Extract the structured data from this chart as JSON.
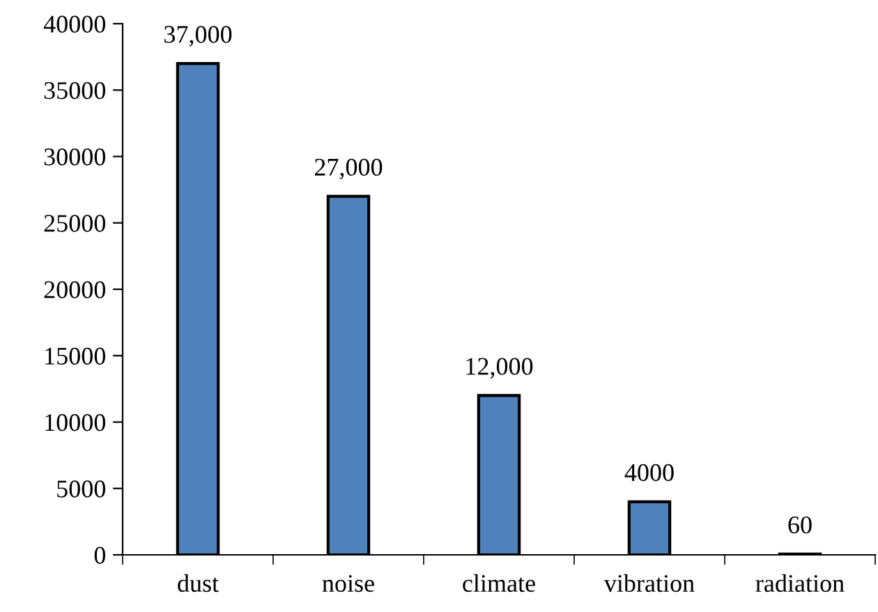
{
  "chart_data": {
    "type": "bar",
    "categories": [
      "dust",
      "noise",
      "climate",
      "vibration",
      "radiation"
    ],
    "values": [
      37000,
      27000,
      12000,
      4000,
      60
    ],
    "value_labels": [
      "37,000",
      "27,000",
      "12,000",
      "4000",
      "60"
    ],
    "color": "#4f81bd",
    "ylim": [
      0,
      40000
    ],
    "yticks": [
      0,
      5000,
      10000,
      15000,
      20000,
      25000,
      30000,
      35000,
      40000
    ],
    "grid": false,
    "legend": false
  }
}
